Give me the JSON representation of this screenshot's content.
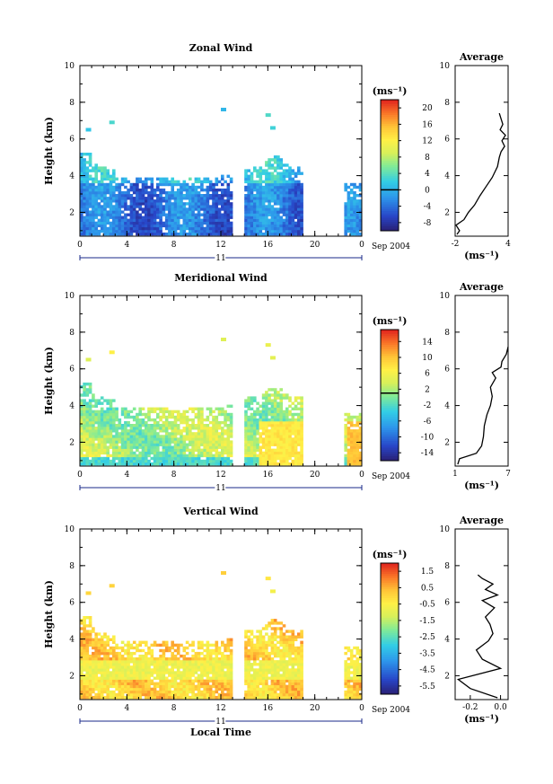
{
  "chart_data": [
    {
      "type": "heatmap",
      "title": "Zonal Wind",
      "ylabel": "Height (km)",
      "xlabel": "",
      "date_label": "Sep 2004",
      "day_label": "11",
      "x_ticks": [
        "0",
        "4",
        "8",
        "12",
        "16",
        "20",
        "0"
      ],
      "y_ticks": [
        "2",
        "4",
        "6",
        "8",
        "10"
      ],
      "xlim": [
        0,
        24
      ],
      "ylim": [
        0.7,
        10
      ],
      "colorbar": {
        "unit": "(ms⁻¹)",
        "ticks": [
          "20",
          "16",
          "12",
          "8",
          "4",
          "0",
          "-4",
          "-8"
        ],
        "range": [
          -10,
          22
        ],
        "zero_line": 0
      },
      "average_profile": {
        "title": "Average",
        "xlabel": "(ms⁻¹)",
        "x_ticks": [
          "-2",
          "4"
        ],
        "y_ticks": [
          "2",
          "4",
          "6",
          "8",
          "10"
        ],
        "xlim": [
          -2,
          4
        ],
        "points": [
          [
            -1.8,
            0.8
          ],
          [
            -1.5,
            1.0
          ],
          [
            -1.9,
            1.3
          ],
          [
            -1.0,
            1.6
          ],
          [
            -0.5,
            2.0
          ],
          [
            0.2,
            2.4
          ],
          [
            0.8,
            2.9
          ],
          [
            1.5,
            3.4
          ],
          [
            2.2,
            3.9
          ],
          [
            2.8,
            4.5
          ],
          [
            3.0,
            5.0
          ],
          [
            3.2,
            5.3
          ],
          [
            3.6,
            5.6
          ],
          [
            3.3,
            5.9
          ],
          [
            3.7,
            6.2
          ],
          [
            3.1,
            6.5
          ],
          [
            3.4,
            6.8
          ],
          [
            3.2,
            7.1
          ],
          [
            3.0,
            7.4
          ]
        ]
      }
    },
    {
      "type": "heatmap",
      "title": "Meridional Wind",
      "ylabel": "Height (km)",
      "xlabel": "",
      "date_label": "Sep 2004",
      "day_label": "11",
      "x_ticks": [
        "0",
        "4",
        "8",
        "12",
        "16",
        "20",
        "0"
      ],
      "y_ticks": [
        "2",
        "4",
        "6",
        "8",
        "10"
      ],
      "xlim": [
        0,
        24
      ],
      "ylim": [
        0.7,
        10
      ],
      "colorbar": {
        "unit": "(ms⁻¹)",
        "ticks": [
          "14",
          "10",
          "6",
          "2",
          "-2",
          "-6",
          "-10",
          "-14"
        ],
        "range": [
          -16,
          17
        ],
        "zero_line": 1
      },
      "average_profile": {
        "title": "Average",
        "xlabel": "(ms⁻¹)",
        "x_ticks": [
          "1",
          "7"
        ],
        "y_ticks": [
          "2",
          "4",
          "6",
          "8",
          "10"
        ],
        "xlim": [
          1,
          7
        ],
        "points": [
          [
            1.3,
            0.8
          ],
          [
            1.5,
            1.1
          ],
          [
            3.4,
            1.4
          ],
          [
            4.0,
            1.8
          ],
          [
            4.2,
            2.3
          ],
          [
            4.3,
            2.9
          ],
          [
            4.6,
            3.5
          ],
          [
            5.0,
            4.0
          ],
          [
            5.2,
            4.5
          ],
          [
            5.0,
            5.0
          ],
          [
            5.6,
            5.5
          ],
          [
            5.2,
            5.8
          ],
          [
            6.2,
            6.1
          ],
          [
            6.3,
            6.4
          ],
          [
            6.8,
            6.8
          ],
          [
            7.0,
            7.2
          ]
        ]
      }
    },
    {
      "type": "heatmap",
      "title": "Vertical Wind",
      "ylabel": "Height (km)",
      "xlabel": "Local Time",
      "date_label": "Sep 2004",
      "day_label": "11",
      "x_ticks": [
        "0",
        "4",
        "8",
        "12",
        "16",
        "20",
        "0"
      ],
      "y_ticks": [
        "2",
        "4",
        "6",
        "8",
        "10"
      ],
      "xlim": [
        0,
        24
      ],
      "ylim": [
        0.7,
        10
      ],
      "colorbar": {
        "unit": "(ms⁻¹)",
        "ticks": [
          "1.5",
          "0.5",
          "-0.5",
          "-1.5",
          "-2.5",
          "-3.5",
          "-4.5",
          "-5.5"
        ],
        "range": [
          -6,
          2
        ],
        "zero_line": null
      },
      "average_profile": {
        "title": "Average",
        "xlabel": "(ms⁻¹)",
        "x_ticks": [
          "-0.2",
          "0.0"
        ],
        "y_ticks": [
          "2",
          "4",
          "6",
          "8",
          "10"
        ],
        "xlim": [
          -0.3,
          0.05
        ],
        "points": [
          [
            -0.02,
            0.8
          ],
          [
            -0.2,
            1.3
          ],
          [
            -0.28,
            1.8
          ],
          [
            0.0,
            2.4
          ],
          [
            -0.12,
            2.9
          ],
          [
            -0.16,
            3.4
          ],
          [
            -0.08,
            3.9
          ],
          [
            -0.05,
            4.3
          ],
          [
            -0.07,
            4.8
          ],
          [
            -0.1,
            5.2
          ],
          [
            -0.04,
            5.7
          ],
          [
            -0.12,
            6.1
          ],
          [
            -0.02,
            6.4
          ],
          [
            -0.1,
            6.7
          ],
          [
            -0.05,
            7.0
          ],
          [
            -0.12,
            7.3
          ],
          [
            -0.15,
            7.5
          ]
        ]
      }
    }
  ]
}
